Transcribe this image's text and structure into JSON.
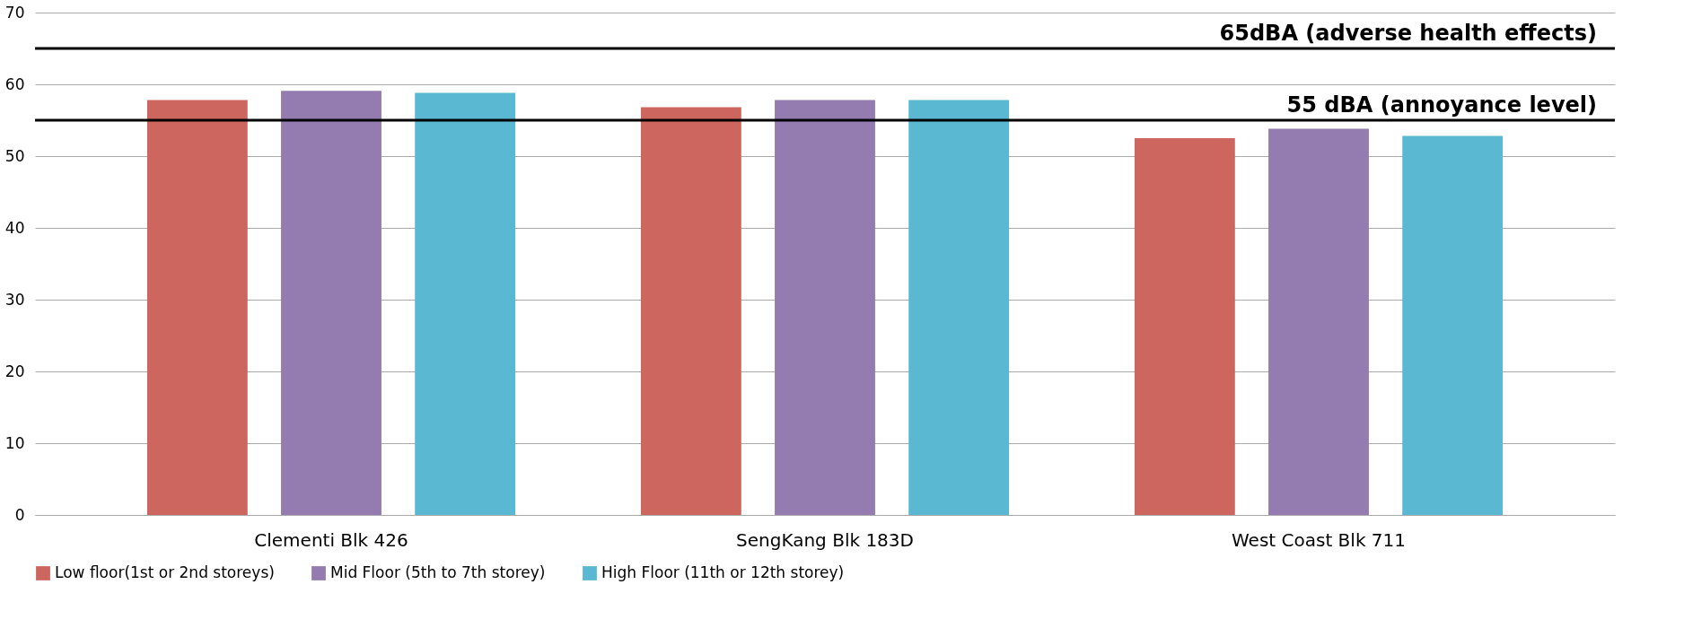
{
  "chart_data": {
    "type": "bar",
    "categories": [
      "Clementi Blk 426",
      "SengKang Blk 183D",
      "West Coast Blk 711"
    ],
    "series": [
      {
        "name": "Low floor(1st or 2nd storeys)",
        "color": "#cd665f",
        "values": [
          57.8,
          56.8,
          52.5
        ]
      },
      {
        "name": "Mid Floor (5th to 7th storey)",
        "color": "#947cb0",
        "values": [
          59.1,
          57.8,
          53.8
        ]
      },
      {
        "name": "High Floor (11th or 12th storey)",
        "color": "#5bb8d2",
        "values": [
          58.8,
          57.8,
          52.8
        ]
      }
    ],
    "ylim": [
      0,
      70
    ],
    "yticks": [
      0,
      10,
      20,
      30,
      40,
      50,
      60,
      70
    ],
    "ref_lines": [
      {
        "axis": "y",
        "value": 65,
        "label": "65dBA (adverse health effects)",
        "color": "#000000"
      },
      {
        "axis": "y",
        "value": 55,
        "label": "55 dBA (annoyance level)",
        "color": "#000000"
      }
    ],
    "grid": "y",
    "legend": "bottom"
  }
}
